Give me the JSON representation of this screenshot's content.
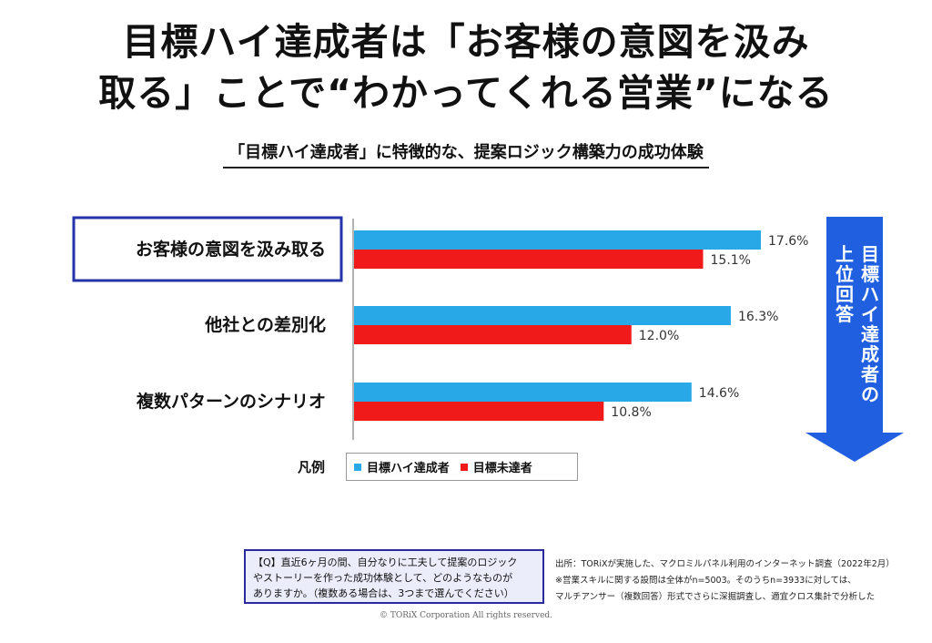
{
  "headline": {
    "line1": "目標ハイ達成者は「お客様の意図を汲み",
    "line2": "取る」ことで“わかってくれる営業”になる"
  },
  "chart_data": {
    "type": "bar",
    "orientation": "horizontal",
    "title": "「目標ハイ達成者」に特徴的な、提案ロジック構築力の成功体験",
    "categories": [
      "お客様の意図を汲み取る",
      "他社との差別化",
      "複数パターンのシナリオ"
    ],
    "highlighted_category": "お客様の意図を汲み取る",
    "series": [
      {
        "name": "目標ハイ達成者",
        "color": "#29a8e8",
        "values": [
          17.6,
          16.3,
          14.6
        ],
        "labels": [
          "17.6%",
          "16.3%",
          "14.6%"
        ]
      },
      {
        "name": "目標未達者",
        "color": "#f01a1a",
        "values": [
          15.1,
          12.0,
          10.8
        ],
        "labels": [
          "15.1%",
          "12.0%",
          "10.8%"
        ]
      }
    ],
    "xlim": [
      0,
      20
    ],
    "grid": false,
    "legend_title": "凡例",
    "legend_placement": "bottom"
  },
  "rank_arrow": {
    "label_main": "目標ハイ達成者の",
    "label_sub": "上位回答",
    "color": "#1f5fe0"
  },
  "question": {
    "lines": [
      "【Q】直近6ヶ月の間、自分なりに工夫して提案のロジック",
      "やストーリーを作った成功体験として、どのようなものが",
      "ありますか。（複数ある場合は、3つまで選んでください）"
    ]
  },
  "source": {
    "lines": [
      "出所：TORiXが実施した、マクロミルパネル利用のインターネット調査（2022年2月）",
      "※営業スキルに関する設問は全体がn=5003。そのうちn=3933に対しては、",
      "マルチアンサー（複数回答）形式でさらに深掘調査し、適宜クロス集計で分析した"
    ]
  },
  "copyright": "© TORiX Corporation All rights reserved."
}
